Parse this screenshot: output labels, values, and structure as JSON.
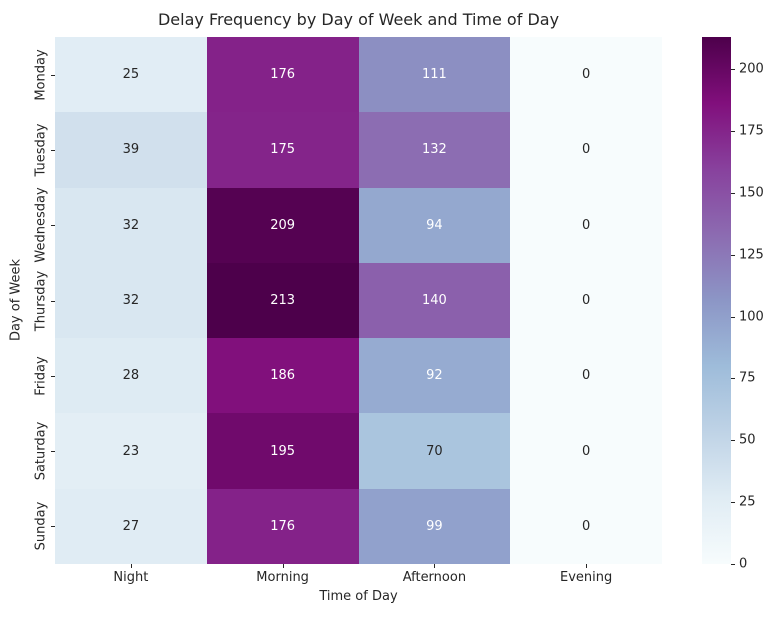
{
  "chart_data": {
    "type": "heatmap",
    "title": "Delay Frequency by Day of Week and Time of Day",
    "xlabel": "Time of Day",
    "ylabel": "Day of Week",
    "x_categories": [
      "Night",
      "Morning",
      "Afternoon",
      "Evening"
    ],
    "y_categories": [
      "Monday",
      "Tuesday",
      "Wednesday",
      "Thursday",
      "Friday",
      "Saturday",
      "Sunday"
    ],
    "values": [
      [
        25,
        176,
        111,
        0
      ],
      [
        39,
        175,
        132,
        0
      ],
      [
        32,
        209,
        94,
        0
      ],
      [
        32,
        213,
        140,
        0
      ],
      [
        28,
        186,
        92,
        0
      ],
      [
        23,
        195,
        70,
        0
      ],
      [
        27,
        176,
        99,
        0
      ]
    ],
    "vmin": 0,
    "vmax": 213,
    "colormap": {
      "name": "BuPu",
      "stops": [
        "#f7fcfd",
        "#e0ecf4",
        "#bfd3e6",
        "#9ebcda",
        "#8c96c6",
        "#8c6bb1",
        "#88419d",
        "#810f7c",
        "#4d004b"
      ]
    },
    "colorbar_ticks": [
      0,
      25,
      50,
      75,
      100,
      125,
      150,
      175,
      200
    ],
    "annotation_colors": {
      "light": "#ffffff",
      "dark": "#262626"
    },
    "grid": false,
    "legend_position": "colorbar-right"
  }
}
